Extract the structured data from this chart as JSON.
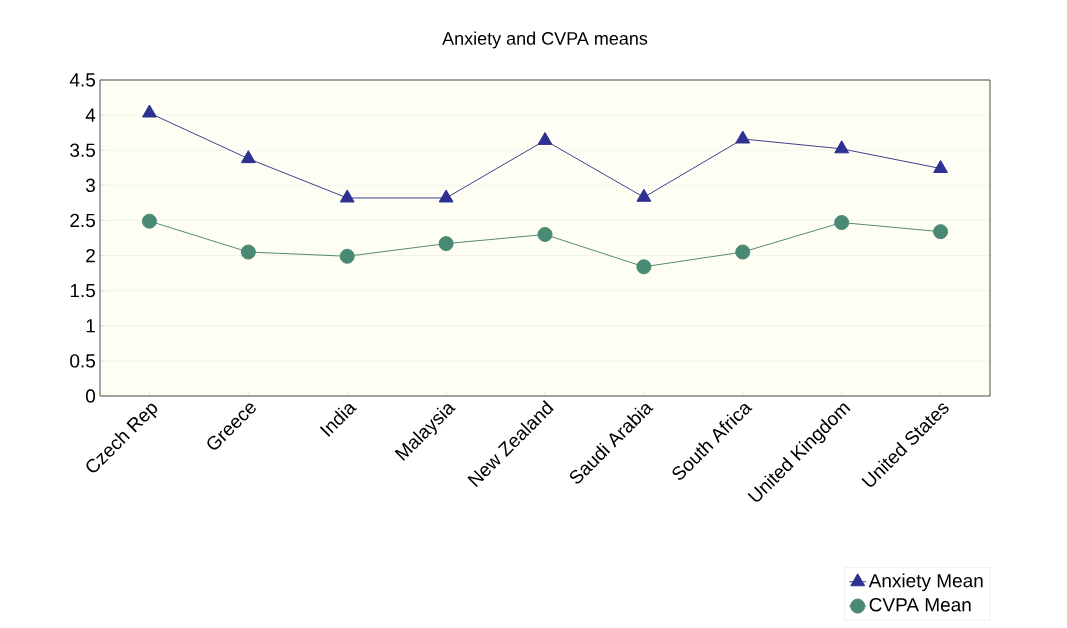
{
  "chart_data": {
    "type": "line",
    "title": "Anxiety and CVPA means",
    "categories": [
      "Czech Rep",
      "Greece",
      "India",
      "Malaysia",
      "New Zealand",
      "Saudi Arabia",
      "South Africa",
      "United Kingdom",
      "United States"
    ],
    "series": [
      {
        "name": "Anxiety Mean",
        "color": "#2e3192",
        "marker": "triangle",
        "values": [
          4.03,
          3.38,
          2.82,
          2.82,
          3.64,
          2.83,
          3.66,
          3.52,
          3.24
        ]
      },
      {
        "name": "CVPA Mean",
        "color": "#4a8a74",
        "marker": "circle",
        "values": [
          2.49,
          2.05,
          1.99,
          2.17,
          2.3,
          1.84,
          2.05,
          2.47,
          2.34
        ]
      }
    ],
    "ylim": [
      0,
      4.5
    ],
    "yticks": [
      0,
      0.5,
      1,
      1.5,
      2,
      2.5,
      3,
      3.5,
      4,
      4.5
    ],
    "grid": "y",
    "legend": "bottom right"
  }
}
